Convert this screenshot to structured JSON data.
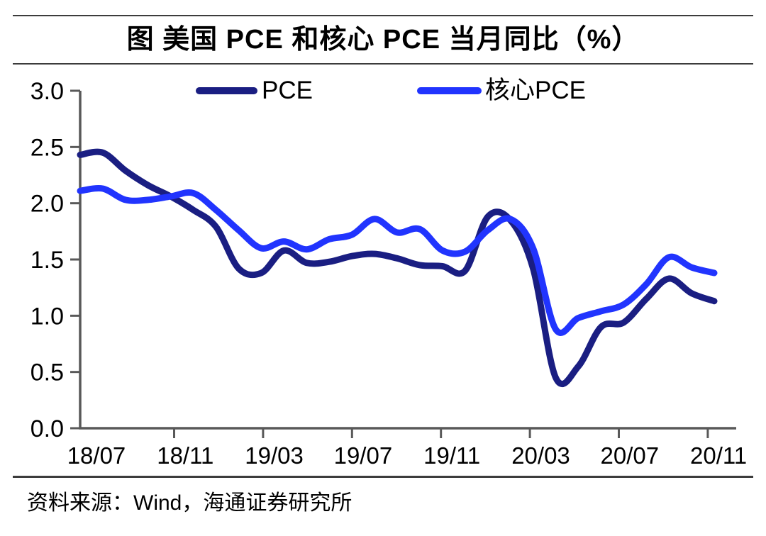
{
  "title": "图  美国 PCE 和核心 PCE 当月同比（%）",
  "source": "资料来源：Wind，海通证券研究所",
  "legend": [
    {
      "label": "PCE",
      "color": "#1a1e82"
    },
    {
      "label": "核心PCE",
      "color": "#2134fe"
    }
  ],
  "axis_color": "#595959",
  "chart_data": {
    "type": "line",
    "title": "图 美国 PCE 和核心 PCE 当月同比（%）",
    "unit": "%",
    "x": [
      "18/07",
      "18/08",
      "18/09",
      "18/10",
      "18/11",
      "18/12",
      "19/01",
      "19/02",
      "19/03",
      "19/04",
      "19/05",
      "19/06",
      "19/07",
      "19/08",
      "19/09",
      "19/10",
      "19/11",
      "19/12",
      "20/01",
      "20/02",
      "20/03",
      "20/04",
      "20/05",
      "20/06",
      "20/07",
      "20/08",
      "20/09",
      "20/10",
      "20/11"
    ],
    "x_tick_labels": [
      "18/07",
      "18/11",
      "19/03",
      "19/07",
      "19/11",
      "20/03",
      "20/07",
      "20/11"
    ],
    "series": [
      {
        "name": "PCE",
        "color": "#1a1e82",
        "values": [
          2.43,
          2.45,
          2.29,
          2.16,
          2.06,
          1.94,
          1.79,
          1.42,
          1.38,
          1.58,
          1.47,
          1.48,
          1.53,
          1.55,
          1.51,
          1.45,
          1.44,
          1.4,
          1.88,
          1.85,
          1.42,
          0.45,
          0.55,
          0.9,
          0.94,
          1.15,
          1.33,
          1.2,
          1.13
        ]
      },
      {
        "name": "核心PCE",
        "color": "#2134fe",
        "values": [
          2.11,
          2.13,
          2.03,
          2.03,
          2.06,
          2.09,
          1.94,
          1.76,
          1.6,
          1.66,
          1.59,
          1.68,
          1.72,
          1.86,
          1.74,
          1.77,
          1.58,
          1.57,
          1.76,
          1.86,
          1.6,
          0.88,
          0.98,
          1.04,
          1.1,
          1.28,
          1.52,
          1.43,
          1.38
        ]
      }
    ],
    "ylim": [
      0.0,
      3.0
    ],
    "yticks": [
      0.0,
      0.5,
      1.0,
      1.5,
      2.0,
      2.5,
      3.0
    ],
    "y_tick_labels": [
      "0.0",
      "0.5",
      "1.0",
      "1.5",
      "2.0",
      "2.5",
      "3.0"
    ],
    "grid": false,
    "legend_position": "top",
    "smooth": true
  }
}
